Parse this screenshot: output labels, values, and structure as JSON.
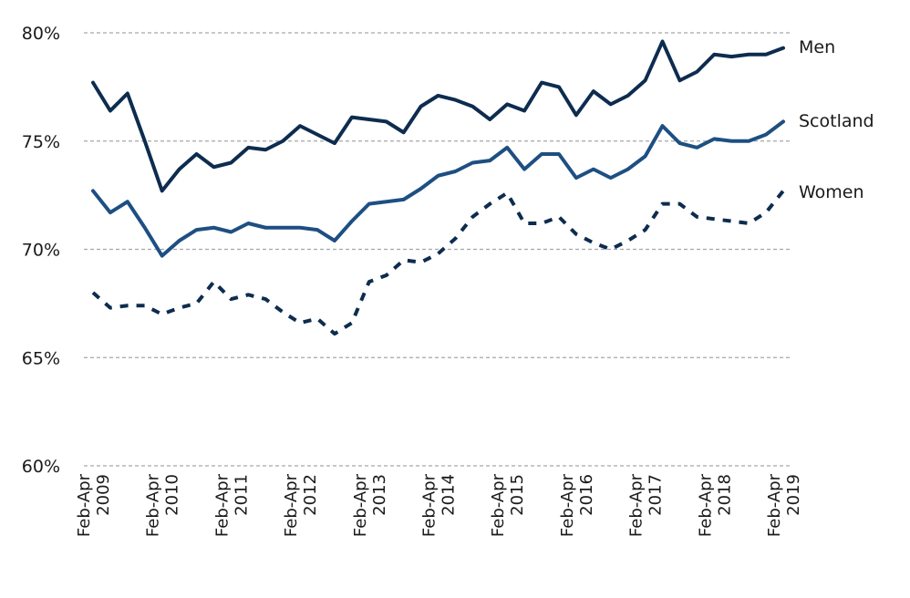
{
  "chart_data": {
    "type": "line",
    "y_unit": "%",
    "ylim": [
      60,
      80
    ],
    "yticks": [
      60,
      65,
      70,
      75,
      80
    ],
    "ytick_labels": [
      "60%",
      "65%",
      "70%",
      "75%",
      "80%"
    ],
    "grid": "horizontal dashed",
    "x_period_labels": [
      "Feb-Apr 2009",
      "Feb-Apr 2010",
      "Feb-Apr 2011",
      "Feb-Apr 2012",
      "Feb-Apr 2013",
      "Feb-Apr 2014",
      "Feb-Apr 2015",
      "Feb-Apr 2016",
      "Feb-Apr 2017",
      "Feb-Apr 2018",
      "Feb-Apr 2019"
    ],
    "x_tick_lines": [
      [
        "Feb-Apr",
        "2009"
      ],
      [
        "Feb-Apr",
        "2010"
      ],
      [
        "Feb-Apr",
        "2011"
      ],
      [
        "Feb-Apr",
        "2012"
      ],
      [
        "Feb-Apr",
        "2013"
      ],
      [
        "Feb-Apr",
        "2014"
      ],
      [
        "Feb-Apr",
        "2015"
      ],
      [
        "Feb-Apr",
        "2016"
      ],
      [
        "Feb-Apr",
        "2017"
      ],
      [
        "Feb-Apr",
        "2018"
      ],
      [
        "Feb-Apr",
        "2019"
      ]
    ],
    "series": [
      {
        "name": "Men",
        "color": "#0d2c4f",
        "dash": "solid",
        "values": [
          77.7,
          76.4,
          77.2,
          75.0,
          72.7,
          73.7,
          74.4,
          73.8,
          74.0,
          74.7,
          74.6,
          75.0,
          75.7,
          75.3,
          74.9,
          76.1,
          76.0,
          75.9,
          75.4,
          76.6,
          77.1,
          76.9,
          76.6,
          76.0,
          76.7,
          76.4,
          77.7,
          77.5,
          76.2,
          77.3,
          76.7,
          77.1,
          77.8,
          79.6,
          77.8,
          78.2,
          79.0,
          78.9,
          79.0,
          79.0,
          79.3
        ]
      },
      {
        "name": "Scotland",
        "color": "#1d4f82",
        "dash": "solid",
        "values": [
          72.7,
          71.7,
          72.2,
          71.0,
          69.7,
          70.4,
          70.9,
          71.0,
          70.8,
          71.2,
          71.0,
          71.0,
          71.0,
          70.9,
          70.4,
          71.3,
          72.1,
          72.2,
          72.3,
          72.8,
          73.4,
          73.6,
          74.0,
          74.1,
          74.7,
          73.7,
          74.4,
          74.4,
          73.3,
          73.7,
          73.3,
          73.7,
          74.3,
          75.7,
          74.9,
          74.7,
          75.1,
          75.0,
          75.0,
          75.3,
          75.9
        ]
      },
      {
        "name": "Women",
        "color": "#0d2c4f",
        "dash": "dashed",
        "values": [
          68.0,
          67.3,
          67.4,
          67.4,
          67.0,
          67.3,
          67.5,
          68.5,
          67.7,
          67.9,
          67.7,
          67.1,
          66.6,
          66.8,
          66.1,
          66.6,
          68.5,
          68.8,
          69.5,
          69.4,
          69.8,
          70.5,
          71.5,
          72.1,
          72.6,
          71.2,
          71.2,
          71.5,
          70.7,
          70.3,
          70.0,
          70.4,
          70.9,
          72.1,
          72.1,
          71.5,
          71.4,
          71.3,
          71.2,
          71.7,
          72.7
        ]
      }
    ]
  }
}
